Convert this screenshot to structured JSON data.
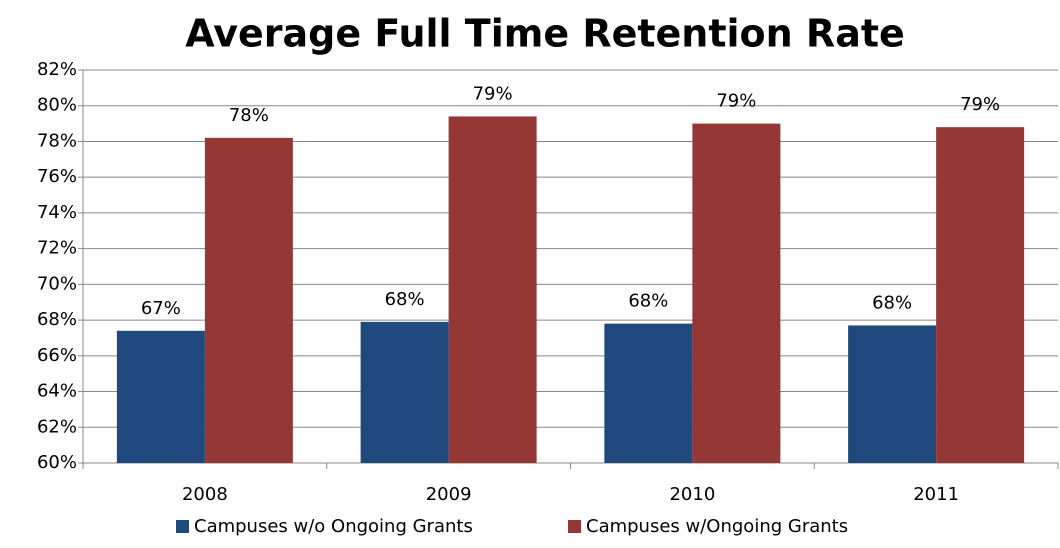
{
  "chart_data": {
    "type": "bar",
    "title": "Average Full Time Retention Rate",
    "categories": [
      "2008",
      "2009",
      "2010",
      "2011"
    ],
    "series": [
      {
        "name": "Campuses w/o Ongoing Grants",
        "color": "#1f497d",
        "values": [
          67.4,
          67.9,
          67.8,
          67.7
        ],
        "value_labels": [
          "67%",
          "68%",
          "68%",
          "68%"
        ]
      },
      {
        "name": "Campuses w/Ongoing Grants",
        "color": "#953735",
        "values": [
          78.2,
          79.4,
          79.0,
          78.8
        ],
        "value_labels": [
          "78%",
          "79%",
          "79%",
          "79%"
        ]
      }
    ],
    "ylim": [
      60,
      82
    ],
    "yticks": [
      {
        "value": 60,
        "label": "60%"
      },
      {
        "value": 62,
        "label": "62%"
      },
      {
        "value": 64,
        "label": "64%"
      },
      {
        "value": 66,
        "label": "66%"
      },
      {
        "value": 68,
        "label": "68%"
      },
      {
        "value": 70,
        "label": "70%"
      },
      {
        "value": 72,
        "label": "72%"
      },
      {
        "value": 74,
        "label": "74%"
      },
      {
        "value": 76,
        "label": "76%"
      },
      {
        "value": 78,
        "label": "78%"
      },
      {
        "value": 80,
        "label": "80%"
      },
      {
        "value": 82,
        "label": "82%"
      }
    ],
    "grid": true,
    "legend": "bottom"
  }
}
